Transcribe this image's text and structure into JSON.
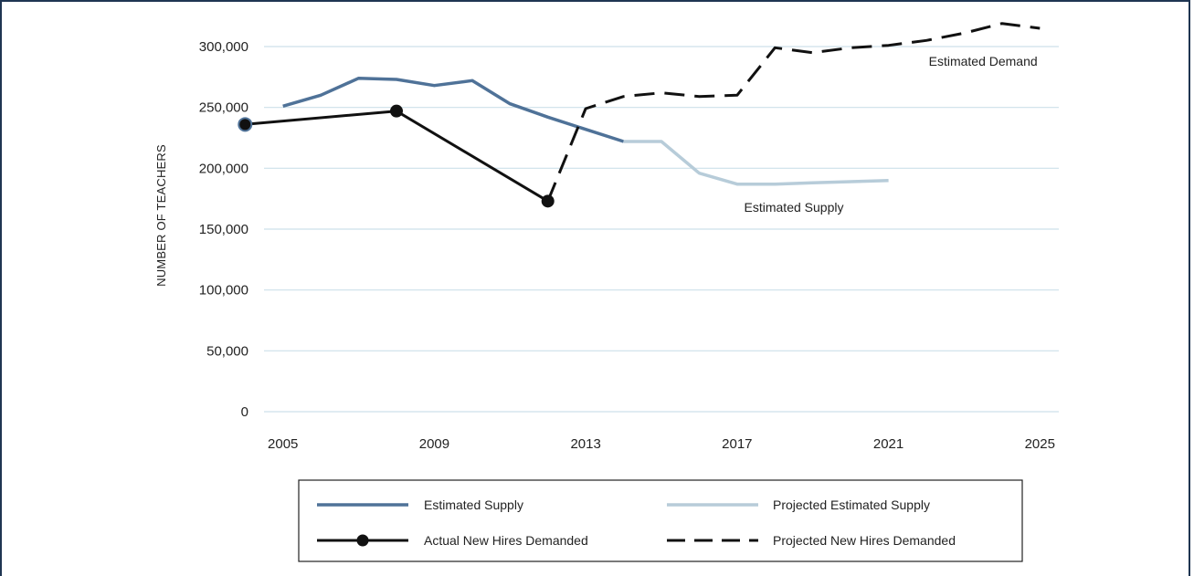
{
  "chart_data": {
    "type": "line",
    "title": "",
    "ylabel": "NUMBER OF TEACHERS",
    "xlabel": "",
    "ylim": [
      0,
      300000
    ],
    "xlim": [
      2004.5,
      2025.5
    ],
    "grid": true,
    "y_ticks": [
      0,
      50000,
      100000,
      150000,
      200000,
      250000,
      300000
    ],
    "y_tick_labels": [
      "0",
      "50,000",
      "100,000",
      "150,000",
      "200,000",
      "250,000",
      "300,000"
    ],
    "x_ticks": [
      2005,
      2009,
      2013,
      2017,
      2021,
      2025
    ],
    "x_tick_labels": [
      "2005",
      "2009",
      "2013",
      "2017",
      "2021",
      "2025"
    ],
    "legend_position": "bottom",
    "colors": {
      "estimated_supply": "#4f7298",
      "projected_supply": "#b7ccd9",
      "actual_hires": "#111111",
      "projected_hires": "#111111",
      "grid": "#cde0ea",
      "frame": "#1f3552"
    },
    "series": [
      {
        "key": "estimated_supply",
        "name": "Estimated Supply",
        "style": "solid",
        "x": [
          2005,
          2006,
          2007,
          2008,
          2009,
          2010,
          2011,
          2012,
          2013,
          2014
        ],
        "y": [
          251000,
          260000,
          274000,
          273000,
          268000,
          272000,
          253000,
          242000,
          232000,
          222000
        ]
      },
      {
        "key": "projected_supply",
        "name": "Projected Estimated Supply",
        "style": "solid",
        "x": [
          2014,
          2015,
          2016,
          2017,
          2018,
          2019,
          2020,
          2021
        ],
        "y": [
          222000,
          222000,
          196000,
          187000,
          187000,
          188000,
          189000,
          190000
        ]
      },
      {
        "key": "actual_hires",
        "name": "Actual New Hires Demanded",
        "style": "solid-markers",
        "x": [
          2004,
          2008,
          2012
        ],
        "y": [
          236000,
          247000,
          173000
        ]
      },
      {
        "key": "projected_hires",
        "name": "Projected New Hires Demanded",
        "style": "dashed",
        "x": [
          2012,
          2013,
          2014,
          2015,
          2016,
          2017,
          2018,
          2019,
          2020,
          2021,
          2022,
          2023,
          2024,
          2025
        ],
        "y": [
          173000,
          249000,
          259000,
          262000,
          259000,
          260000,
          299000,
          295000,
          299000,
          301000,
          305000,
          311000,
          319000,
          315000
        ]
      }
    ],
    "annotations": [
      {
        "text": "Estimated Demand",
        "x": 2023.5,
        "y": 288000
      },
      {
        "text": "Estimated Supply",
        "x": 2018.5,
        "y": 168000
      }
    ]
  }
}
